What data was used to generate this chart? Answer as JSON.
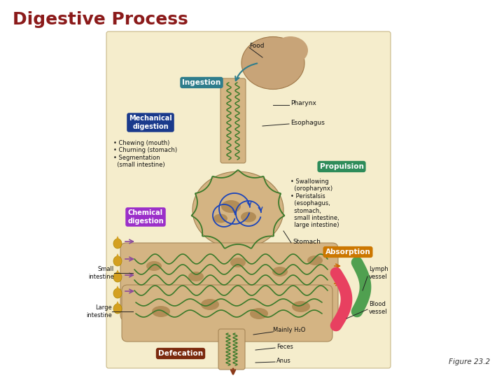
{
  "title": "Digestive Process",
  "title_color": "#8B1A1A",
  "title_fontsize": 18,
  "figure_caption": "Figure 23.2",
  "bg_color": "#FFFFFF",
  "diagram_bg": "#F5EDCC",
  "labels": {
    "ingestion": "Ingestion",
    "ingestion_color": "#2E7D8C",
    "mechanical": "Mechanical\ndigestion",
    "mechanical_color": "#1A3A8C",
    "chemical": "Chemical\ndigestion",
    "chemical_color": "#9B2FC9",
    "propulsion": "Propulsion",
    "propulsion_color": "#2E8C5A",
    "absorption": "Absorption",
    "absorption_color": "#CC7700",
    "defecation": "Defecation",
    "defecation_color": "#7B2A0E"
  },
  "annotations": {
    "food": "Food",
    "pharynx": "Pharynx",
    "esophagus": "Esophagus",
    "stomach": "Stomach",
    "small_intestine": "Small\nintestine",
    "large_intestine": "Large\nintestine",
    "lymph_vessel": "Lymph\nvessel",
    "blood_vessel": "Blood\nvessel",
    "mainly_h2o": "Mainly H₂O",
    "feces": "Feces",
    "anus": "Anus",
    "chewing": "• Chewing (mouth)\n• Churning (stomach)\n• Segmentation\n  (small intestine)",
    "swallowing": "• Swallowing\n  (oropharynx)\n• Peristalsis\n  (esophagus,\n  stomach,\n  small intestine,\n  large intestine)"
  },
  "body_tan": "#D4B483",
  "body_spot": "#A07840",
  "green_line": "#3A7A2A",
  "blue_line": "#1A44BB",
  "pink_vessel": "#E84060",
  "green_vessel": "#50A050",
  "drop_color": "#D4A020",
  "arrow_purple": "#8B4A9B"
}
